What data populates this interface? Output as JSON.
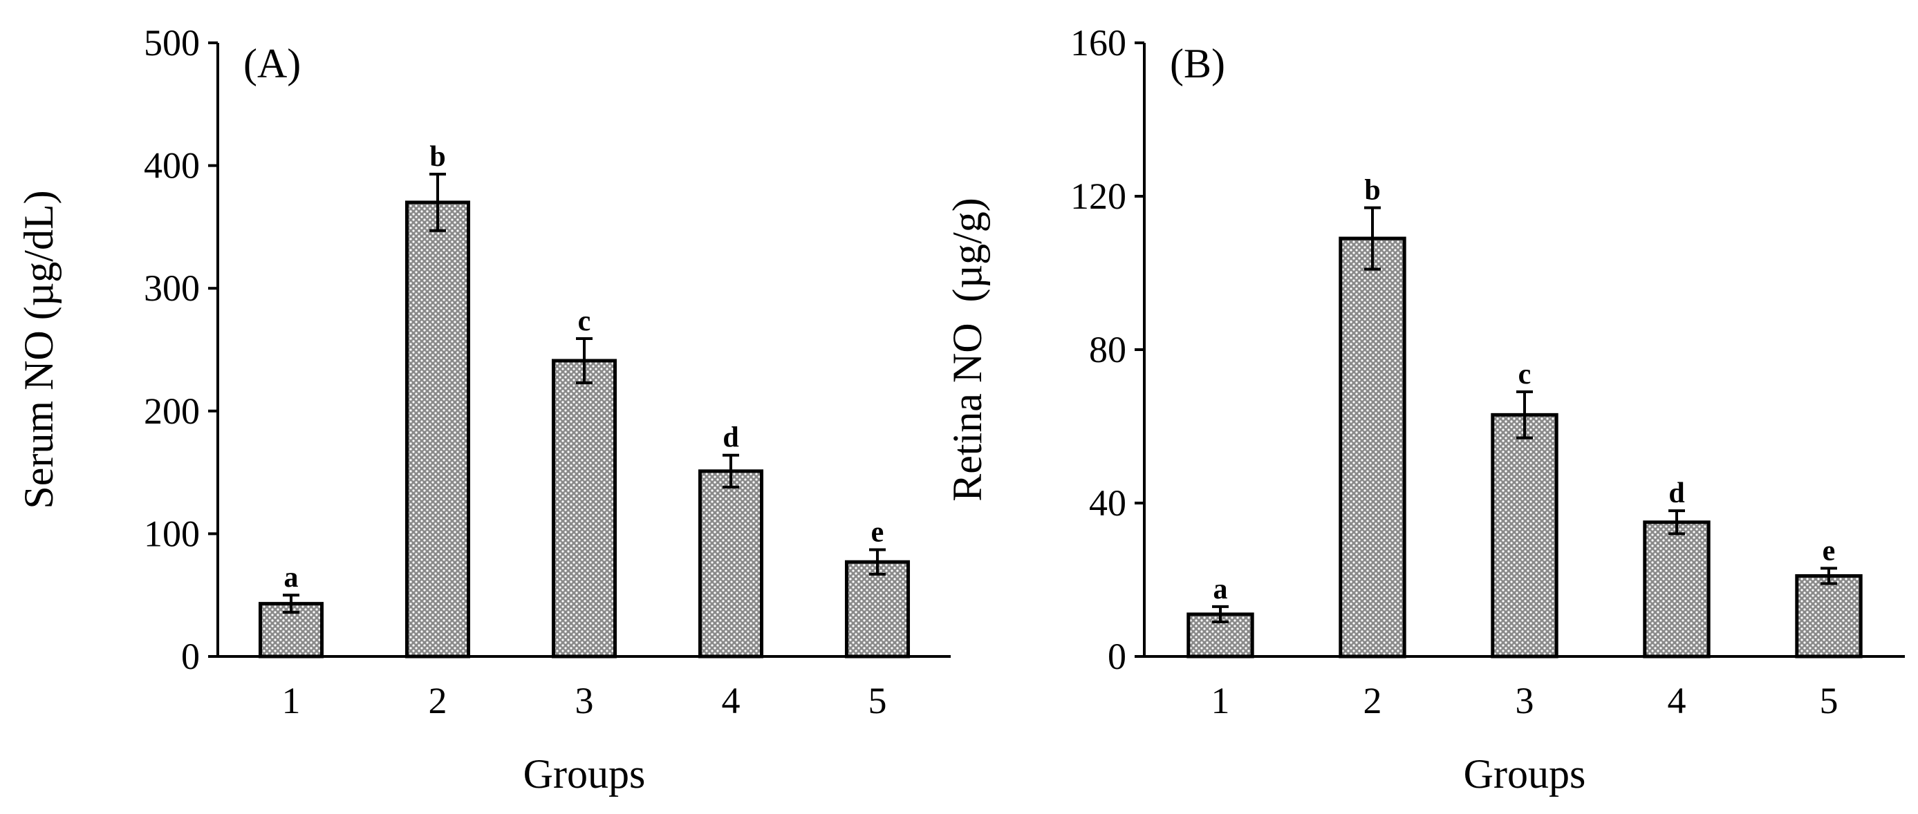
{
  "chart_data": [
    {
      "type": "bar",
      "panel_label": "(A)",
      "categories": [
        "1",
        "2",
        "3",
        "4",
        "5"
      ],
      "values": [
        43,
        370,
        241,
        151,
        77
      ],
      "errors": [
        7,
        23,
        18,
        13,
        10
      ],
      "significance": [
        "a",
        "b",
        "c",
        "d",
        "e"
      ],
      "xlabel": "Groups",
      "ylabel": "Serum NO (µg/dL)",
      "ylim": [
        0,
        500
      ],
      "yticks": [
        0,
        100,
        200,
        300,
        400,
        500
      ],
      "grid": false,
      "bar_fill": "dotted grey pattern",
      "color": "#7a7a7a"
    },
    {
      "type": "bar",
      "panel_label": "(B)",
      "categories": [
        "1",
        "2",
        "3",
        "4",
        "5"
      ],
      "values": [
        11,
        109,
        63,
        35,
        21
      ],
      "errors": [
        2,
        8,
        6,
        3,
        2
      ],
      "significance": [
        "a",
        "b",
        "c",
        "d",
        "e"
      ],
      "xlabel": "Groups",
      "ylabel": "Retina NO  (µg/g)",
      "ylim": [
        0,
        160
      ],
      "yticks": [
        0,
        40,
        80,
        120,
        160
      ],
      "grid": false,
      "bar_fill": "dotted grey pattern",
      "color": "#7a7a7a"
    }
  ]
}
